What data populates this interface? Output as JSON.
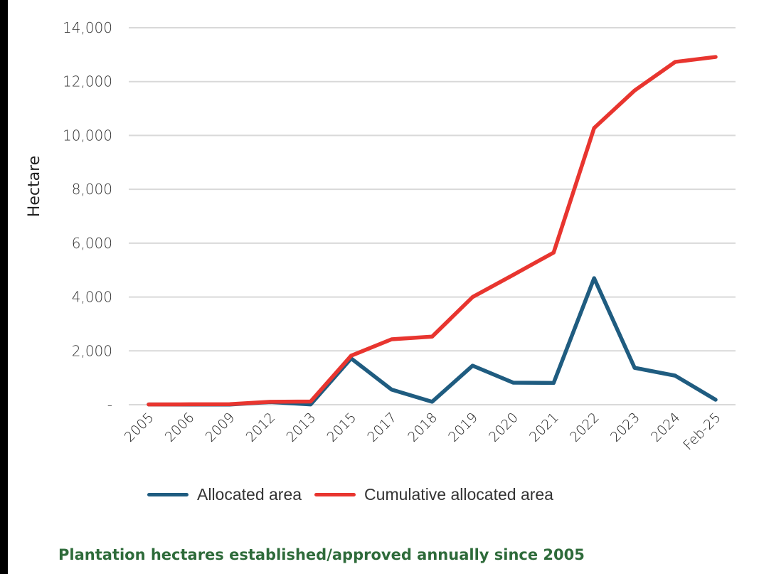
{
  "chart_data": {
    "type": "line",
    "title": "Plantation hectares established/approved annually since 2005",
    "xlabel": "",
    "ylabel": "Hectare",
    "ylim": [
      0,
      14000
    ],
    "yticks": [
      0,
      2000,
      4000,
      6000,
      8000,
      10000,
      12000,
      14000
    ],
    "ytick_labels": [
      "-",
      "2,000",
      "4,000",
      "6,000",
      "8,000",
      "10,000",
      "12,000",
      "14,000"
    ],
    "grid": true,
    "legend_position": "bottom",
    "categories": [
      "2005",
      "2006",
      "2009",
      "2012",
      "2013",
      "2015",
      "2017",
      "2018",
      "2019",
      "2020",
      "2021",
      "2022",
      "2023",
      "2024",
      "Feb-25"
    ],
    "series": [
      {
        "name": "Allocated area",
        "color": "#1f5c80",
        "values": [
          10,
          5,
          5,
          100,
          10,
          1720,
          560,
          110,
          1450,
          820,
          810,
          4700,
          1370,
          1080,
          185
        ]
      },
      {
        "name": "Cumulative allocated area",
        "color": "#e8352f",
        "values": [
          10,
          15,
          20,
          110,
          120,
          1820,
          2430,
          2530,
          4000,
          4820,
          5650,
          10275,
          11670,
          12730,
          12915
        ]
      }
    ]
  },
  "caption": "Plantation hectares established/approved annually since 2005"
}
